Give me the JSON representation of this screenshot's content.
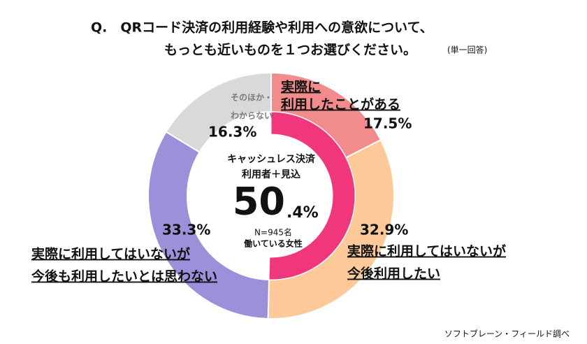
{
  "chart_data": {
    "type": "donut",
    "title_lines": [
      "Q.　QRコード決済の利用経験や利用への意欲について、",
      "もっとも近いものを１つお選びください。"
    ],
    "title_note": "(単一回答)",
    "source": "ソフトブレーン・フィールド調べ",
    "series": [
      {
        "name_lines": [
          "実際に",
          "利用したことがある"
        ],
        "values": [
          17.5
        ],
        "value_labels": [
          "17.5%"
        ],
        "color": "#f28b8b"
      },
      {
        "name_lines": [
          "実際に利用してはいないが",
          "今後利用したい"
        ],
        "values": [
          32.9
        ],
        "value_labels": [
          "32.9%"
        ],
        "color": "#fdc998"
      },
      {
        "name_lines": [
          "実際に利用してはいないが",
          "今後も利用したいとは思わない"
        ],
        "values": [
          33.3
        ],
        "value_labels": [
          "33.3%"
        ],
        "color": "#9b90da"
      },
      {
        "name_lines": [
          "そのほか・",
          "わからない"
        ],
        "values": [
          16.3
        ],
        "value_labels": [
          "16.3%"
        ],
        "color": "#d9d9d9"
      }
    ],
    "inner_ring": {
      "name_lines": [
        "キャッシュレス決済",
        "利用者＋見込"
      ],
      "value": 50.4,
      "value_label_parts": [
        "50",
        ".4%"
      ],
      "color": "#f0377b"
    },
    "sample_lines": [
      "N=945名",
      "働いている女性"
    ]
  }
}
